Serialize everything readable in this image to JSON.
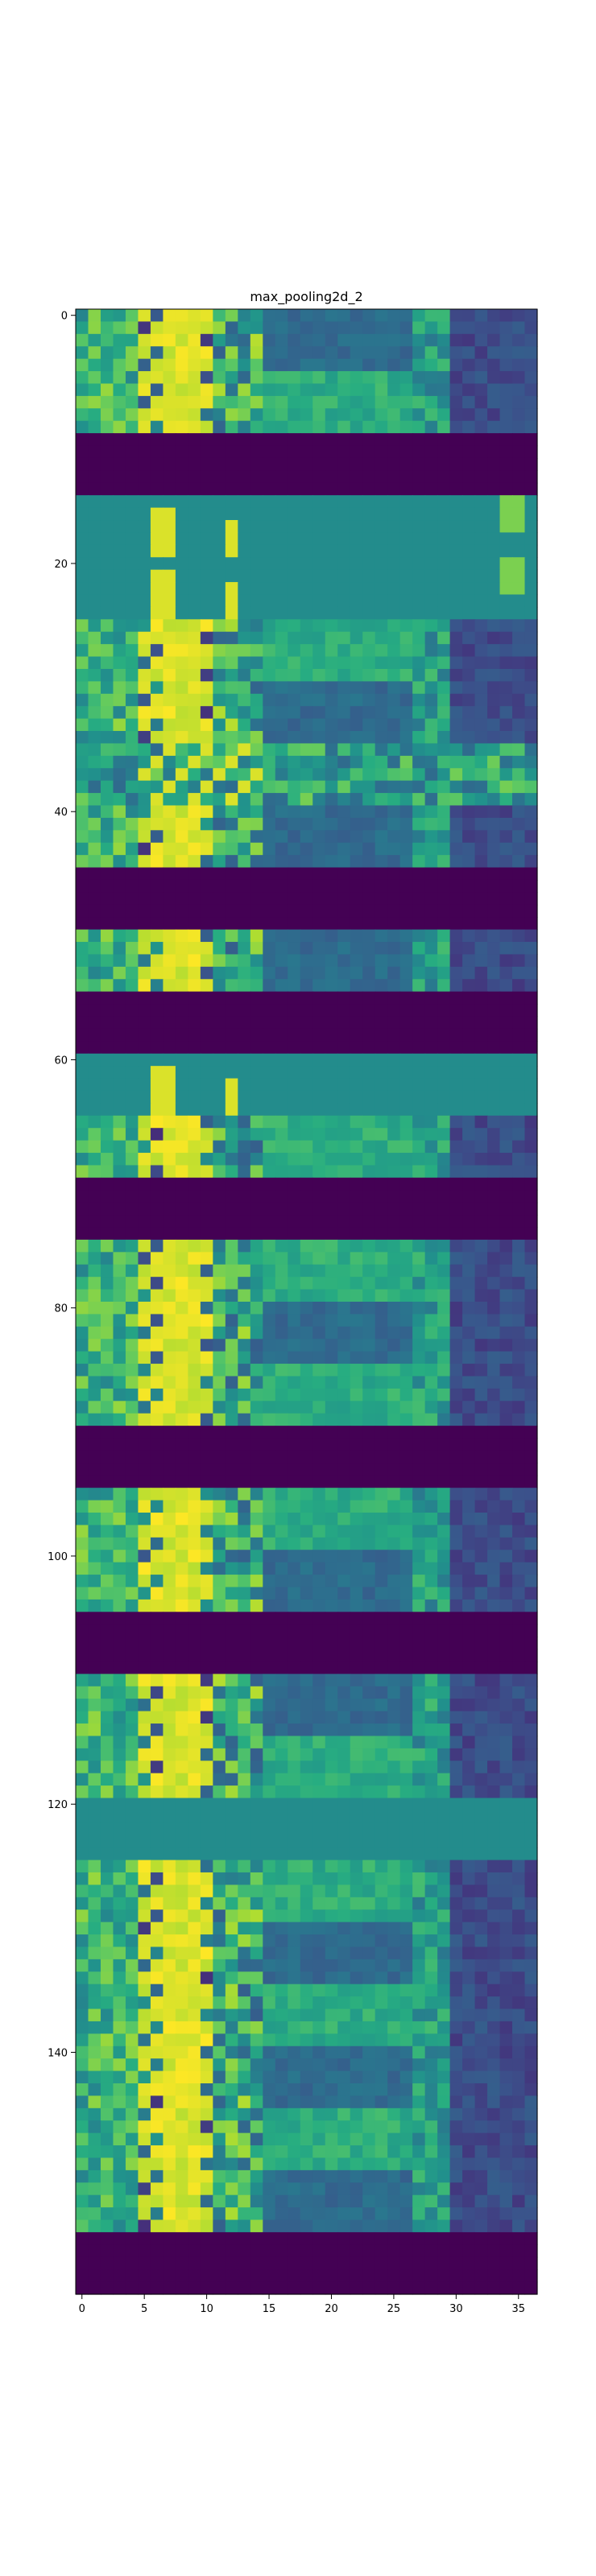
{
  "chart_data": {
    "type": "heatmap",
    "title": "max_pooling2d_2",
    "xlabel": "",
    "ylabel": "",
    "colormap": "viridis",
    "n_cols": 37,
    "n_rows": 160,
    "xlim": [
      -0.5,
      36.5
    ],
    "ylim": [
      159.5,
      -0.5
    ],
    "x_ticks": [
      0,
      5,
      10,
      15,
      20,
      25,
      30,
      35
    ],
    "y_ticks": [
      0,
      20,
      40,
      60,
      80,
      100,
      120,
      140
    ],
    "grid": false,
    "value_range": [
      0,
      1
    ],
    "row_bands": [
      {
        "rows": [
          0,
          9
        ],
        "profile": "active"
      },
      {
        "rows": [
          10,
          14
        ],
        "profile": "dark"
      },
      {
        "rows": [
          15,
          19
        ],
        "profile": "flat"
      },
      {
        "rows": [
          20,
          24
        ],
        "profile": "flat"
      },
      {
        "rows": [
          25,
          29
        ],
        "profile": "active"
      },
      {
        "rows": [
          30,
          34
        ],
        "profile": "active"
      },
      {
        "rows": [
          35,
          39
        ],
        "profile": "mixed"
      },
      {
        "rows": [
          40,
          44
        ],
        "profile": "active"
      },
      {
        "rows": [
          45,
          49
        ],
        "profile": "dark"
      },
      {
        "rows": [
          50,
          54
        ],
        "profile": "active"
      },
      {
        "rows": [
          55,
          59
        ],
        "profile": "dark"
      },
      {
        "rows": [
          60,
          64
        ],
        "profile": "flat"
      },
      {
        "rows": [
          65,
          69
        ],
        "profile": "active"
      },
      {
        "rows": [
          70,
          74
        ],
        "profile": "dark"
      },
      {
        "rows": [
          75,
          79
        ],
        "profile": "active"
      },
      {
        "rows": [
          80,
          84
        ],
        "profile": "active"
      },
      {
        "rows": [
          85,
          89
        ],
        "profile": "active"
      },
      {
        "rows": [
          90,
          94
        ],
        "profile": "dark"
      },
      {
        "rows": [
          95,
          99
        ],
        "profile": "active"
      },
      {
        "rows": [
          100,
          104
        ],
        "profile": "active"
      },
      {
        "rows": [
          105,
          109
        ],
        "profile": "dark"
      },
      {
        "rows": [
          110,
          114
        ],
        "profile": "active"
      },
      {
        "rows": [
          115,
          119
        ],
        "profile": "active"
      },
      {
        "rows": [
          120,
          124
        ],
        "profile": "flat_plain"
      },
      {
        "rows": [
          125,
          129
        ],
        "profile": "active"
      },
      {
        "rows": [
          130,
          134
        ],
        "profile": "active"
      },
      {
        "rows": [
          135,
          139
        ],
        "profile": "active"
      },
      {
        "rows": [
          140,
          144
        ],
        "profile": "active"
      },
      {
        "rows": [
          145,
          149
        ],
        "profile": "active"
      },
      {
        "rows": [
          150,
          154
        ],
        "profile": "active"
      },
      {
        "rows": [
          155,
          159
        ],
        "profile": "dark"
      }
    ]
  }
}
